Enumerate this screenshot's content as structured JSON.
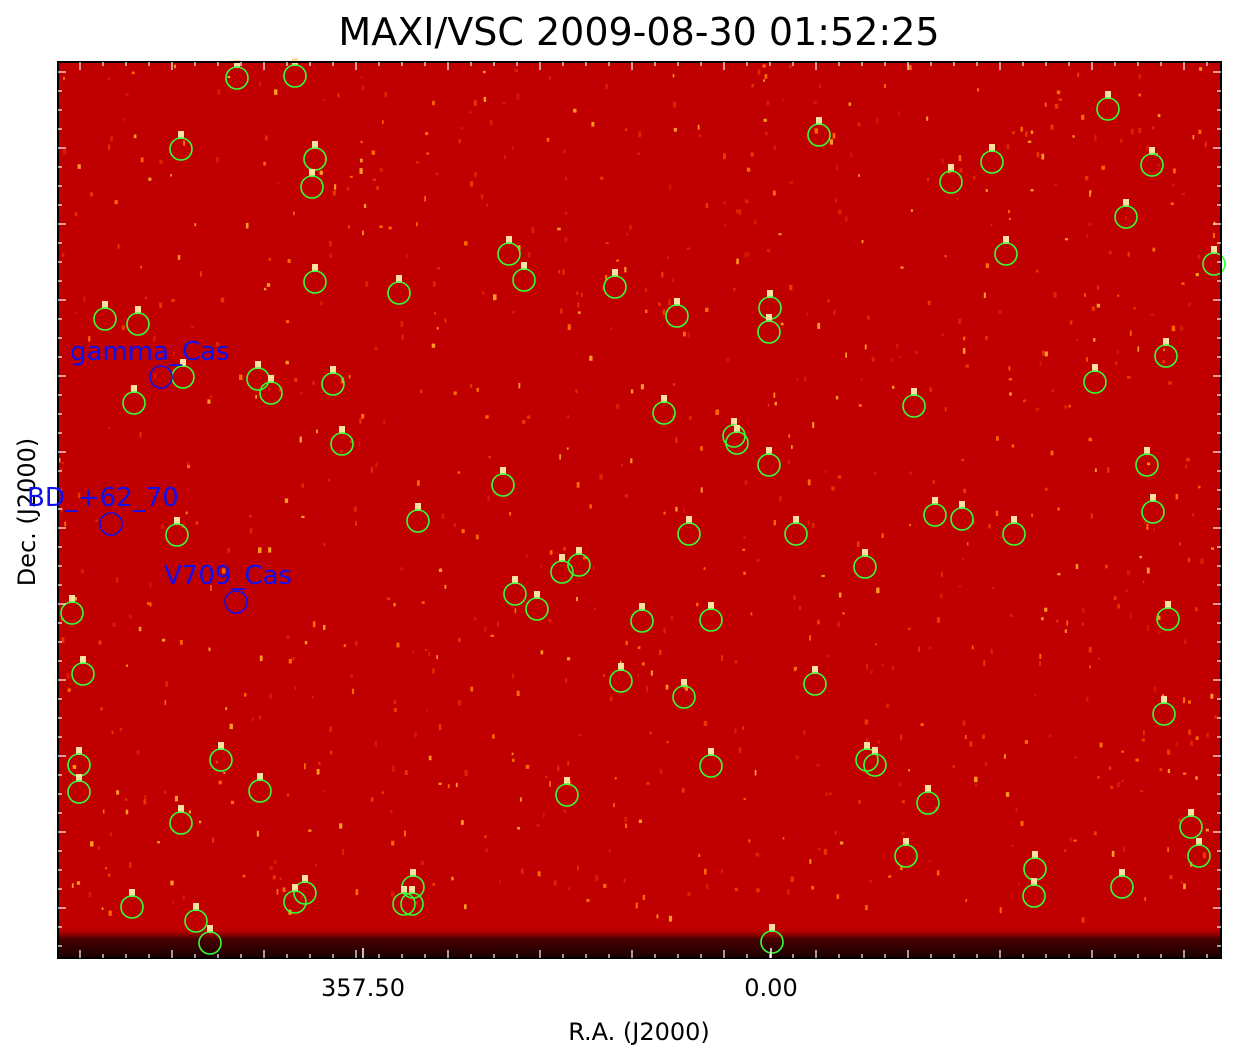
{
  "chart_data": {
    "type": "scatter",
    "title": "MAXI/VSC 2009-08-30 01:52:25",
    "xlabel": "R.A. (J2000)",
    "ylabel": "Dec. (J2000)",
    "x_ticks": [
      "357.50",
      "0.00"
    ],
    "colors": {
      "background": "#c00000",
      "star_marker": "#33ff33",
      "catalog_marker": "#1010ee",
      "frame": "#000000"
    },
    "catalog_sources": [
      {
        "name": "gamma_Cas"
      },
      {
        "name": "BD_+62_70"
      },
      {
        "name": "V709_Cas"
      }
    ],
    "grid": false,
    "legend": "none"
  }
}
